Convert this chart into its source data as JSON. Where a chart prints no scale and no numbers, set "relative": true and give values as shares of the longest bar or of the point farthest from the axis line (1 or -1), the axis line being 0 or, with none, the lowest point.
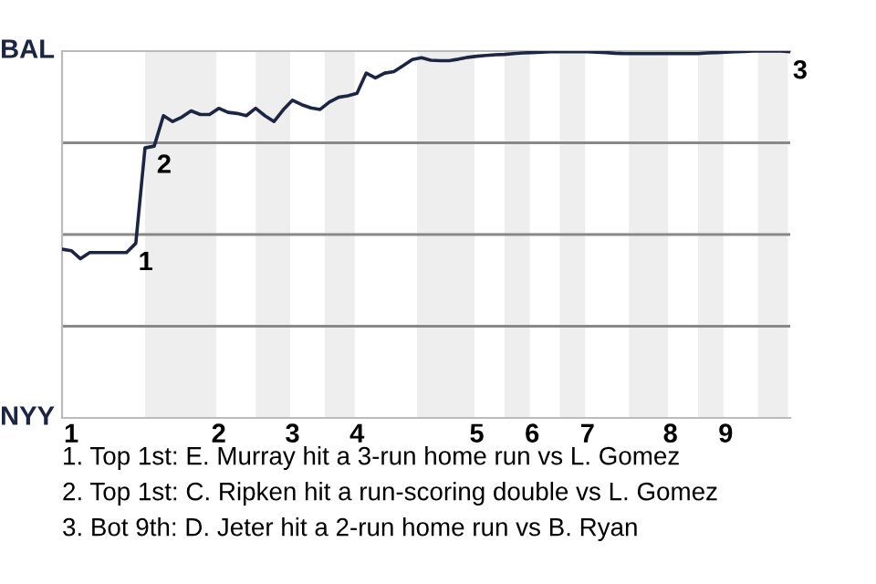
{
  "chart_data": {
    "type": "line",
    "relative": true,
    "categories": [
      null,
      "1",
      null,
      null,
      null,
      null,
      null,
      null,
      null,
      null,
      null,
      null,
      null,
      null,
      null,
      null,
      null,
      "2",
      null,
      null,
      null,
      null,
      null,
      null,
      null,
      "3",
      null,
      null,
      null,
      null,
      null,
      null,
      "4",
      null,
      null,
      null,
      null,
      null,
      null,
      null,
      null,
      null,
      null,
      null,
      null,
      "5",
      null,
      null,
      null,
      null,
      null,
      "6",
      null,
      null,
      null,
      null,
      null,
      "7",
      null,
      null,
      null,
      null,
      null,
      null,
      null,
      null,
      "8",
      null,
      null,
      null,
      null,
      null,
      "9",
      null,
      null,
      null,
      null,
      null,
      null,
      null
    ],
    "series": [
      {
        "color": "#1c2541",
        "values": [
          0.46,
          0.456,
          0.434,
          0.451,
          0.451,
          0.451,
          0.451,
          0.451,
          0.476,
          0.736,
          0.741,
          0.824,
          0.808,
          0.82,
          0.837,
          0.827,
          0.827,
          0.844,
          0.833,
          0.83,
          0.824,
          0.844,
          0.824,
          0.808,
          0.84,
          0.866,
          0.854,
          0.845,
          0.841,
          0.861,
          0.874,
          0.878,
          0.885,
          0.94,
          0.927,
          0.94,
          0.944,
          0.96,
          0.977,
          0.982,
          0.975,
          0.974,
          0.974,
          0.978,
          0.983,
          0.986,
          0.988,
          0.99,
          0.991,
          0.993,
          0.995,
          0.996,
          0.997,
          0.998,
          0.998,
          0.998,
          0.998,
          0.998,
          0.997,
          0.996,
          0.994,
          0.993,
          0.993,
          0.993,
          0.993,
          0.993,
          0.993,
          0.993,
          0.993,
          0.993,
          0.995,
          0.996,
          0.997,
          0.998,
          0.999,
          1.0,
          1.0,
          1.0,
          1.0,
          0.998
        ]
      }
    ],
    "ref_lines": [
      {
        "axis": "y",
        "value": 0.25,
        "color": "#888888"
      },
      {
        "axis": "y",
        "value": 0.5,
        "color": "#888888"
      },
      {
        "axis": "y",
        "value": 0.75,
        "color": "#888888"
      }
    ],
    "annotations": [
      {
        "text": "1",
        "y": 0.6
      },
      {
        "text": "2",
        "y": 0.741
      },
      "3",
      "BAL",
      "NYY",
      "1. Top 1st: E. Murray hit a 3-run home run vs L. Gomez",
      "2. Top 1st: C. Ripken hit a run-scoring double vs L. Gomez",
      "3. Bot 9th: D. Jeter hit a 2-run home run vs B. Ryan"
    ]
  }
}
